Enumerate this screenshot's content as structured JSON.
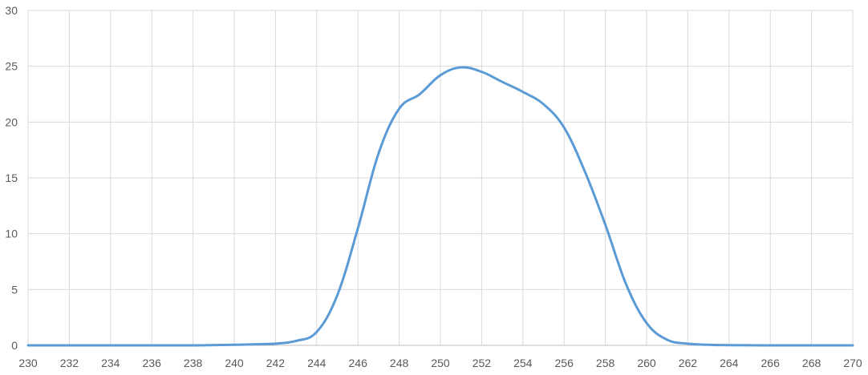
{
  "chart_data": {
    "type": "line",
    "title": "",
    "xlabel": "",
    "ylabel": "",
    "xlim": [
      230,
      270
    ],
    "ylim": [
      0,
      30
    ],
    "x_ticks": [
      "230",
      "232",
      "234",
      "236",
      "238",
      "240",
      "242",
      "244",
      "246",
      "248",
      "250",
      "252",
      "254",
      "256",
      "258",
      "260",
      "262",
      "264",
      "266",
      "268",
      "270"
    ],
    "y_ticks": [
      "0",
      "5",
      "10",
      "15",
      "20",
      "25",
      "30"
    ],
    "grid": true,
    "legend": "none",
    "series": [
      {
        "color": "#5b9bd5",
        "x": [
          230,
          232,
          234,
          236,
          238,
          240,
          241,
          242,
          243,
          244,
          245,
          246,
          247,
          248,
          249,
          250,
          251,
          252,
          253,
          254,
          255,
          256,
          257,
          258,
          259,
          260,
          261,
          262,
          263,
          264,
          266,
          268,
          270
        ],
        "y": [
          0,
          0,
          0,
          0,
          0,
          0.05,
          0.1,
          0.15,
          0.4,
          1.2,
          4.5,
          10.5,
          17.2,
          21.2,
          22.5,
          24.2,
          24.9,
          24.5,
          23.6,
          22.7,
          21.6,
          19.5,
          15.6,
          10.8,
          5.5,
          2.0,
          0.5,
          0.15,
          0.05,
          0.02,
          0,
          0,
          0
        ]
      }
    ]
  }
}
